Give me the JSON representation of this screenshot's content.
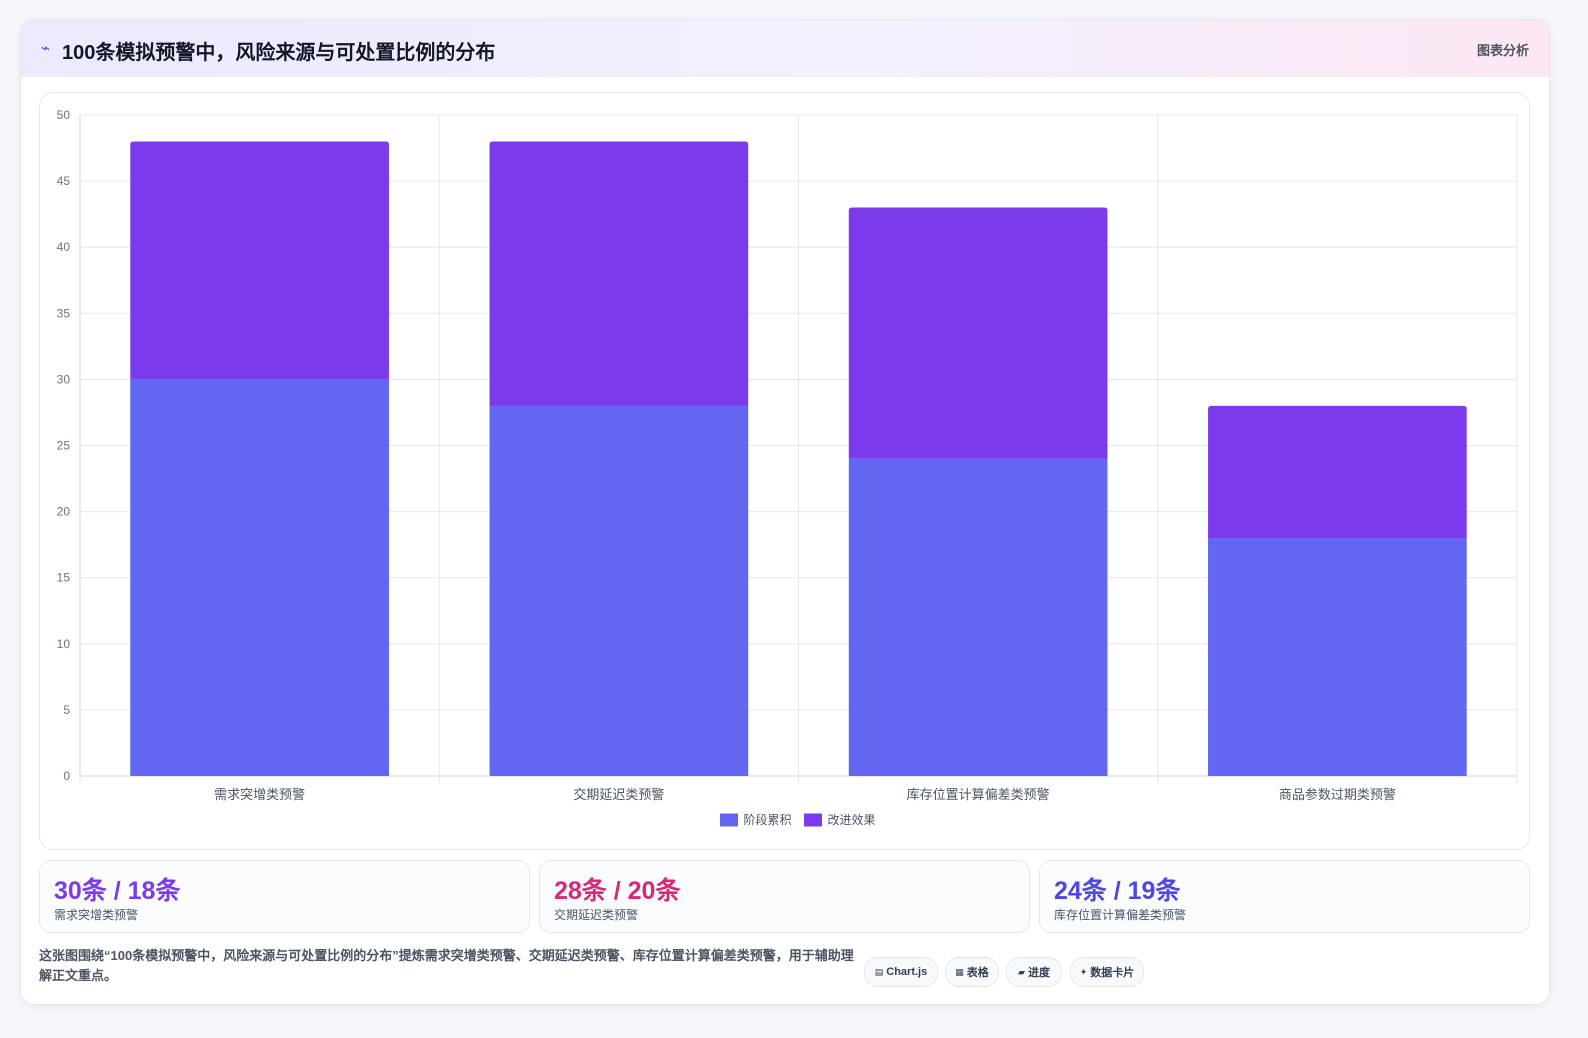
{
  "header": {
    "icon": "chart-line-icon",
    "title": "100条模拟预警中，风险来源与可处置比例的分布",
    "tag": "图表分析"
  },
  "chart_data": {
    "type": "bar",
    "stacked": true,
    "categories": [
      "需求突增类预警",
      "交期延迟类预警",
      "库存位置计算偏差类预警",
      "商品参数过期类预警"
    ],
    "series": [
      {
        "name": "阶段累积",
        "values": [
          30,
          28,
          24,
          18
        ],
        "color": "#6366f1"
      },
      {
        "name": "改进效果",
        "values": [
          18,
          20,
          19,
          10
        ],
        "color": "#7c3aed"
      }
    ],
    "ylim": [
      0,
      50
    ],
    "yticks": [
      0,
      5,
      10,
      15,
      20,
      25,
      30,
      35,
      40,
      45,
      50
    ],
    "grid": true,
    "legend_position": "bottom"
  },
  "stats": [
    {
      "value": "30条 / 18条",
      "label": "需求突增类预警",
      "color": "#7c3aed"
    },
    {
      "value": "28条 / 20条",
      "label": "交期延迟类预警",
      "color": "#db2777"
    },
    {
      "value": "24条 / 19条",
      "label": "库存位置计算偏差类预警",
      "color": "#4f46e5"
    }
  ],
  "description": "这张图围绕“100条模拟预警中，风险来源与可处置比例的分布”提炼需求突增类预警、交期延迟类预警、库存位置计算偏差类预警，用于辅助理解正文重点。",
  "chips": [
    {
      "icon": "▤",
      "label": "Chart.js"
    },
    {
      "icon": "▦",
      "label": "表格"
    },
    {
      "icon": "▰",
      "label": "进度"
    },
    {
      "icon": "✦",
      "label": "数据卡片"
    }
  ]
}
